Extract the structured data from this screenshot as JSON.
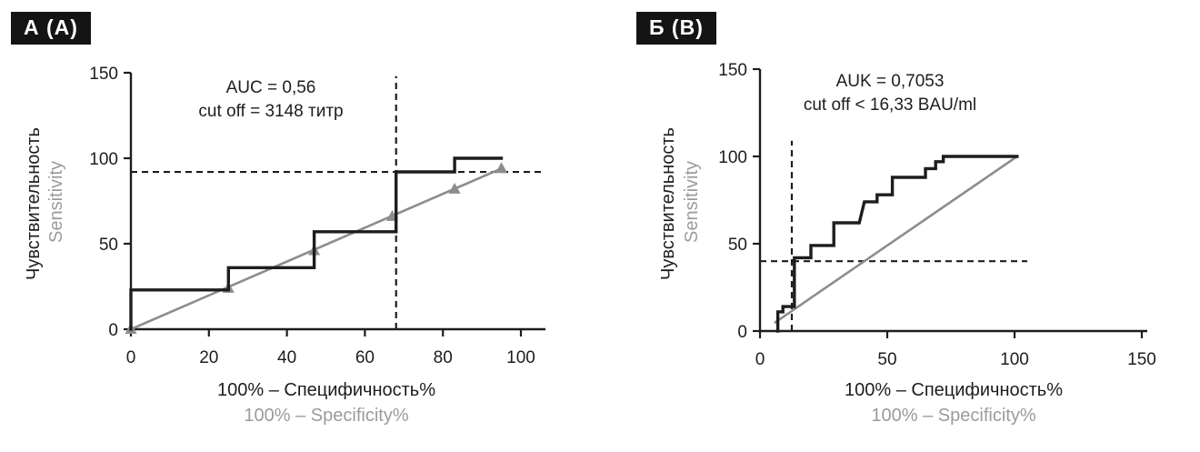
{
  "page": {
    "background": "#ffffff"
  },
  "colors": {
    "ink": "#1d1d1d",
    "ref_line": "#8d8d8d",
    "muted_text": "#9b9b9b",
    "panel_label_bg": "#141414",
    "panel_label_fg": "#ffffff"
  },
  "chart_data": [
    {
      "type": "line",
      "panel_label": "А (A)",
      "annotation": [
        "AUC = 0,56",
        "cut off = 3148 титр"
      ],
      "ylabel": [
        "Чувствительность",
        "Sensitivity"
      ],
      "xlabel": [
        "100% – Специфичность%",
        "100% – Specificity%"
      ],
      "xlim": [
        0,
        107
      ],
      "ylim": [
        0,
        150
      ],
      "x_ticks": [
        0,
        20,
        40,
        60,
        80,
        100
      ],
      "y_ticks": [
        0,
        50,
        100,
        150
      ],
      "grid": false,
      "legend": "none",
      "series": [
        {
          "name": "roc-step-curve",
          "style": "step",
          "color": "ink",
          "width": 3.4,
          "points": [
            [
              0,
              0
            ],
            [
              0,
              23
            ],
            [
              25,
              23
            ],
            [
              25,
              36
            ],
            [
              47,
              36
            ],
            [
              47,
              57
            ],
            [
              68,
              57
            ],
            [
              68,
              92
            ],
            [
              83,
              92
            ],
            [
              83,
              100
            ],
            [
              95,
              100
            ]
          ]
        },
        {
          "name": "reference-diagonal",
          "style": "line-with-triangle-markers",
          "color": "ref_line",
          "width": 2.6,
          "points": [
            [
              0,
              0
            ],
            [
              95,
              94
            ]
          ],
          "markers": [
            [
              0,
              0
            ],
            [
              25,
              24
            ],
            [
              47,
              46
            ],
            [
              67,
              66
            ],
            [
              83,
              82
            ],
            [
              95,
              94
            ]
          ]
        }
      ],
      "cutoff_lines": [
        {
          "orientation": "horizontal",
          "y": 92,
          "x_range": [
            0,
            106
          ]
        },
        {
          "orientation": "vertical",
          "x": 68,
          "y_range": [
            0,
            148
          ]
        }
      ]
    },
    {
      "type": "line",
      "panel_label": "Б (B)",
      "annotation": [
        "AUK = 0,7053",
        "cut off < 16,33 BAU/ml"
      ],
      "ylabel": [
        "Чувствительность",
        "Sensitivity"
      ],
      "xlabel": [
        "100% – Специфичность%",
        "100% – Specificity%"
      ],
      "xlim": [
        0,
        152
      ],
      "ylim": [
        0,
        150
      ],
      "x_ticks": [
        0,
        50,
        100,
        150
      ],
      "y_ticks": [
        0,
        50,
        100,
        150
      ],
      "grid": false,
      "legend": "none",
      "series": [
        {
          "name": "roc-step-curve",
          "style": "step",
          "color": "ink",
          "width": 3.4,
          "points": [
            [
              7,
              0
            ],
            [
              7,
              11
            ],
            [
              9,
              11
            ],
            [
              9,
              14
            ],
            [
              13.5,
              14
            ],
            [
              13.5,
              42
            ],
            [
              20,
              42
            ],
            [
              20,
              49
            ],
            [
              29,
              49
            ],
            [
              29,
              62
            ],
            [
              39,
              62
            ],
            [
              41,
              74
            ],
            [
              46,
              74
            ],
            [
              46,
              78
            ],
            [
              52,
              78
            ],
            [
              52,
              88
            ],
            [
              65,
              88
            ],
            [
              65,
              93
            ],
            [
              69,
              93
            ],
            [
              69,
              97
            ],
            [
              72,
              97
            ],
            [
              72,
              100
            ],
            [
              101,
              100
            ]
          ]
        },
        {
          "name": "reference-diagonal",
          "style": "line",
          "color": "ref_line",
          "width": 2.6,
          "points": [
            [
              6,
              5
            ],
            [
              101,
              100
            ]
          ]
        }
      ],
      "cutoff_lines": [
        {
          "orientation": "horizontal",
          "y": 40,
          "x_range": [
            0,
            105
          ]
        },
        {
          "orientation": "vertical",
          "x": 12.5,
          "y_range": [
            0,
            109
          ]
        }
      ]
    }
  ]
}
